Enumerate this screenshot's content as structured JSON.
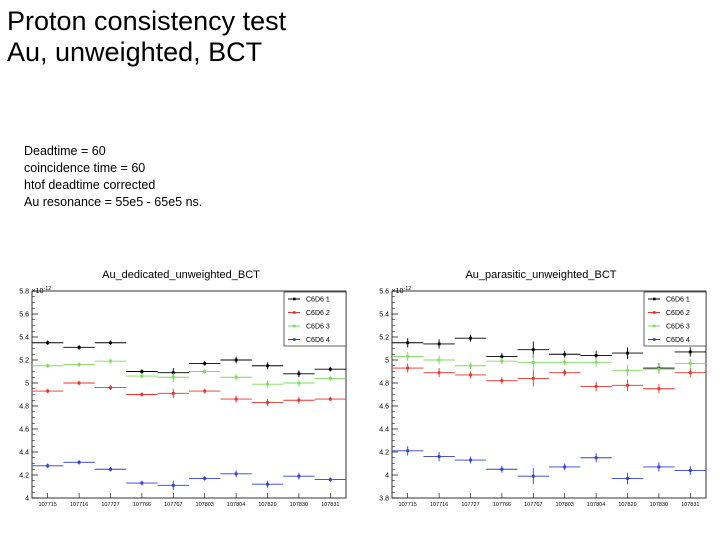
{
  "slide": {
    "title_line1": "Proton consistency test",
    "title_line2": "Au, unweighted, BCT",
    "notes": [
      "Deadtime = 60",
      "coincidence time = 60",
      "htof deadtime corrected",
      "Au resonance = 55e5 - 65e5 ns."
    ]
  },
  "colors": {
    "C6D6 1": "#000000",
    "C6D6 2": "#e8322d",
    "C6D6 3": "#7ddd5a",
    "C6D6 4": "#2f3fd0"
  },
  "chart_data": [
    {
      "type": "scatter",
      "title": "Au_dedicated_unweighted_BCT",
      "y_exponent_label": "×10",
      "y_exponent": "-12",
      "categories": [
        "107715",
        "107716",
        "107727",
        "107766",
        "107767",
        "107803",
        "107804",
        "107829",
        "107830",
        "107831"
      ],
      "ylim": [
        4.0,
        5.8
      ],
      "yticks": [
        "4",
        "4.2",
        "4.4",
        "4.6",
        "4.8",
        "5",
        "5.2",
        "5.4",
        "5.6",
        "5.8"
      ],
      "legend_position": "top-right",
      "series": [
        {
          "name": "C6D6 1",
          "values": [
            5.35,
            5.31,
            5.35,
            5.1,
            5.09,
            5.17,
            5.2,
            5.15,
            5.08,
            5.12
          ],
          "errors": [
            0.02,
            0.02,
            0.02,
            0.02,
            0.04,
            0.02,
            0.03,
            0.03,
            0.03,
            0.02
          ]
        },
        {
          "name": "C6D6 2",
          "values": [
            4.93,
            5.0,
            4.96,
            4.9,
            4.91,
            4.93,
            4.86,
            4.83,
            4.85,
            4.86
          ],
          "errors": [
            0.02,
            0.02,
            0.02,
            0.02,
            0.04,
            0.02,
            0.03,
            0.03,
            0.03,
            0.02
          ]
        },
        {
          "name": "C6D6 3",
          "values": [
            5.15,
            5.16,
            5.19,
            5.06,
            5.05,
            5.1,
            5.05,
            4.99,
            5.0,
            5.04
          ],
          "errors": [
            0.02,
            0.02,
            0.02,
            0.02,
            0.04,
            0.02,
            0.03,
            0.03,
            0.03,
            0.02
          ]
        },
        {
          "name": "C6D6 4",
          "values": [
            4.28,
            4.31,
            4.25,
            4.13,
            4.11,
            4.17,
            4.21,
            4.12,
            4.19,
            4.16
          ],
          "errors": [
            0.02,
            0.02,
            0.02,
            0.02,
            0.04,
            0.02,
            0.03,
            0.03,
            0.03,
            0.02
          ]
        }
      ]
    },
    {
      "type": "scatter",
      "title": "Au_parasitic_unweighted_BCT",
      "y_exponent_label": "×10",
      "y_exponent": "-12",
      "categories": [
        "107715",
        "107716",
        "107727",
        "107766",
        "107767",
        "107803",
        "107804",
        "107829",
        "107830",
        "107831"
      ],
      "ylim": [
        3.8,
        5.6
      ],
      "yticks": [
        "3.8",
        "4",
        "4.2",
        "4.4",
        "4.6",
        "4.8",
        "5",
        "5.2",
        "5.4",
        "5.6"
      ],
      "legend_position": "top-right",
      "series": [
        {
          "name": "C6D6 1",
          "values": [
            5.15,
            5.14,
            5.19,
            5.03,
            5.09,
            5.05,
            5.04,
            5.06,
            4.93,
            5.07
          ],
          "errors": [
            0.04,
            0.04,
            0.03,
            0.03,
            0.07,
            0.03,
            0.04,
            0.05,
            0.04,
            0.04
          ]
        },
        {
          "name": "C6D6 2",
          "values": [
            4.93,
            4.89,
            4.87,
            4.82,
            4.84,
            4.89,
            4.77,
            4.78,
            4.75,
            4.89
          ],
          "errors": [
            0.04,
            0.04,
            0.03,
            0.03,
            0.07,
            0.03,
            0.04,
            0.05,
            0.04,
            0.04
          ]
        },
        {
          "name": "C6D6 3",
          "values": [
            5.03,
            5.0,
            4.95,
            4.99,
            4.98,
            4.98,
            4.98,
            4.91,
            4.92,
            4.97
          ],
          "errors": [
            0.04,
            0.04,
            0.03,
            0.03,
            0.07,
            0.03,
            0.04,
            0.05,
            0.04,
            0.04
          ]
        },
        {
          "name": "C6D6 4",
          "values": [
            4.21,
            4.16,
            4.13,
            4.05,
            3.99,
            4.07,
            4.15,
            3.97,
            4.07,
            4.04
          ],
          "errors": [
            0.04,
            0.04,
            0.03,
            0.03,
            0.07,
            0.03,
            0.04,
            0.05,
            0.04,
            0.04
          ]
        }
      ]
    }
  ]
}
